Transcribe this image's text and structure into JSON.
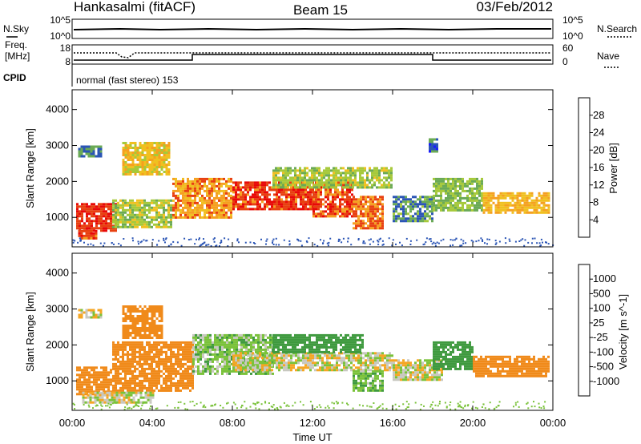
{
  "header": {
    "station": "Hankasalmi (fitACF)",
    "beam": "Beam 15",
    "date": "03/Feb/2012"
  },
  "noise_panel": {
    "left_label": "N.Sky",
    "left_ticks": [
      "10^5",
      "10^0"
    ],
    "right_label": "N.Search",
    "right_ticks": [
      "10^5",
      "10^0"
    ]
  },
  "freq_panel": {
    "left_label_1": "Freq.",
    "left_label_2": "[MHz]",
    "left_ticks": [
      "18",
      "8"
    ],
    "right_label": "Nave",
    "right_ticks": [
      "60",
      "0"
    ]
  },
  "cpid": {
    "label": "CPID",
    "text": "normal (fast stereo) 153"
  },
  "chart_data": [
    {
      "type": "heatmap",
      "title": "Power",
      "xlabel": "",
      "ylabel": "Slant Range [km]",
      "x_ticks": [],
      "y_ticks": [
        "1000",
        "2000",
        "3000",
        "4000"
      ],
      "xlim_hours": [
        0,
        24
      ],
      "ylim_km": [
        180,
        4550
      ],
      "colorbar": {
        "label": "Power [dB]",
        "ticks": [
          "4",
          "8",
          "12",
          "16",
          "20",
          "24",
          "28"
        ],
        "colors": [
          "#1a1aff",
          "#2b55b5",
          "#3b7a57",
          "#6aaa55",
          "#a6c93a",
          "#f0c020",
          "#f5a020",
          "#f07018",
          "#e84010",
          "#e80808"
        ]
      },
      "patches": [
        {
          "t0": 0.2,
          "t1": 2.2,
          "r0": 600,
          "r1": 1400,
          "value": 28
        },
        {
          "t0": 0.3,
          "t1": 1.2,
          "r0": 400,
          "r1": 650,
          "value": 26
        },
        {
          "t0": 2.0,
          "t1": 5.0,
          "r0": 700,
          "r1": 1500,
          "value": 14
        },
        {
          "t0": 2.5,
          "t1": 4.8,
          "r0": 2200,
          "r1": 3100,
          "value": 18
        },
        {
          "t0": 5.0,
          "t1": 8.0,
          "r0": 1000,
          "r1": 2100,
          "value": 22
        },
        {
          "t0": 8.0,
          "t1": 12.0,
          "r0": 1200,
          "r1": 2000,
          "value": 27
        },
        {
          "t0": 12.0,
          "t1": 14.0,
          "r0": 1000,
          "r1": 2000,
          "value": 26
        },
        {
          "t0": 14.0,
          "t1": 15.5,
          "r0": 700,
          "r1": 1600,
          "value": 24
        },
        {
          "t0": 10.0,
          "t1": 16.0,
          "r0": 1800,
          "r1": 2400,
          "value": 14
        },
        {
          "t0": 16.0,
          "t1": 18.0,
          "r0": 900,
          "r1": 1600,
          "value": 9
        },
        {
          "t0": 18.0,
          "t1": 20.5,
          "r0": 1200,
          "r1": 2100,
          "value": 12
        },
        {
          "t0": 20.5,
          "t1": 23.8,
          "r0": 1100,
          "r1": 1700,
          "value": 20
        },
        {
          "t0": 0.3,
          "t1": 1.5,
          "r0": 2700,
          "r1": 3000,
          "value": 8
        },
        {
          "t0": 17.8,
          "t1": 18.2,
          "r0": 2800,
          "r1": 3200,
          "value": 6
        }
      ]
    },
    {
      "type": "heatmap",
      "title": "Velocity",
      "xlabel": "Time UT",
      "ylabel": "Slant Range [km]",
      "x_ticks": [
        "00:00",
        "04:00",
        "08:00",
        "12:00",
        "16:00",
        "20:00",
        "00:00"
      ],
      "y_ticks": [
        "1000",
        "2000",
        "3000",
        "4000"
      ],
      "xlim_hours": [
        0,
        24
      ],
      "ylim_km": [
        180,
        4550
      ],
      "colorbar": {
        "label": "Velocity [m s^-1]",
        "ticks": [
          "1000",
          "500",
          "100",
          "25",
          "-25",
          "-100",
          "-500",
          "-1000"
        ],
        "colors": [
          "#2a55c0",
          "#2f8a6e",
          "#3f9a3f",
          "#7ac23a",
          "#c8c8c0",
          "#f5a623",
          "#f08a1a",
          "#e86010",
          "#e82010"
        ]
      },
      "patches": [
        {
          "t0": 0.2,
          "t1": 2.0,
          "r0": 600,
          "r1": 1400,
          "value": -250
        },
        {
          "t0": 2.0,
          "t1": 6.0,
          "r0": 700,
          "r1": 2100,
          "value": -200
        },
        {
          "t0": 2.5,
          "t1": 4.5,
          "r0": 2200,
          "r1": 3100,
          "value": -400
        },
        {
          "t0": 6.0,
          "t1": 10.0,
          "r0": 1200,
          "r1": 2300,
          "value": 60
        },
        {
          "t0": 8.0,
          "t1": 16.0,
          "r0": 1300,
          "r1": 1800,
          "value": 0
        },
        {
          "t0": 10.0,
          "t1": 14.5,
          "r0": 1800,
          "r1": 2300,
          "value": 200
        },
        {
          "t0": 14.0,
          "t1": 15.5,
          "r0": 700,
          "r1": 1300,
          "value": 80
        },
        {
          "t0": 16.0,
          "t1": 18.5,
          "r0": 1000,
          "r1": 1600,
          "value": 0
        },
        {
          "t0": 18.0,
          "t1": 20.0,
          "r0": 1300,
          "r1": 2100,
          "value": 400
        },
        {
          "t0": 20.0,
          "t1": 23.8,
          "r0": 1100,
          "r1": 1700,
          "value": -350
        },
        {
          "t0": 0.3,
          "t1": 1.5,
          "r0": 2750,
          "r1": 3000,
          "value": 0
        },
        {
          "t0": 0.5,
          "t1": 4.0,
          "r0": 400,
          "r1": 700,
          "value": 0
        }
      ]
    }
  ]
}
